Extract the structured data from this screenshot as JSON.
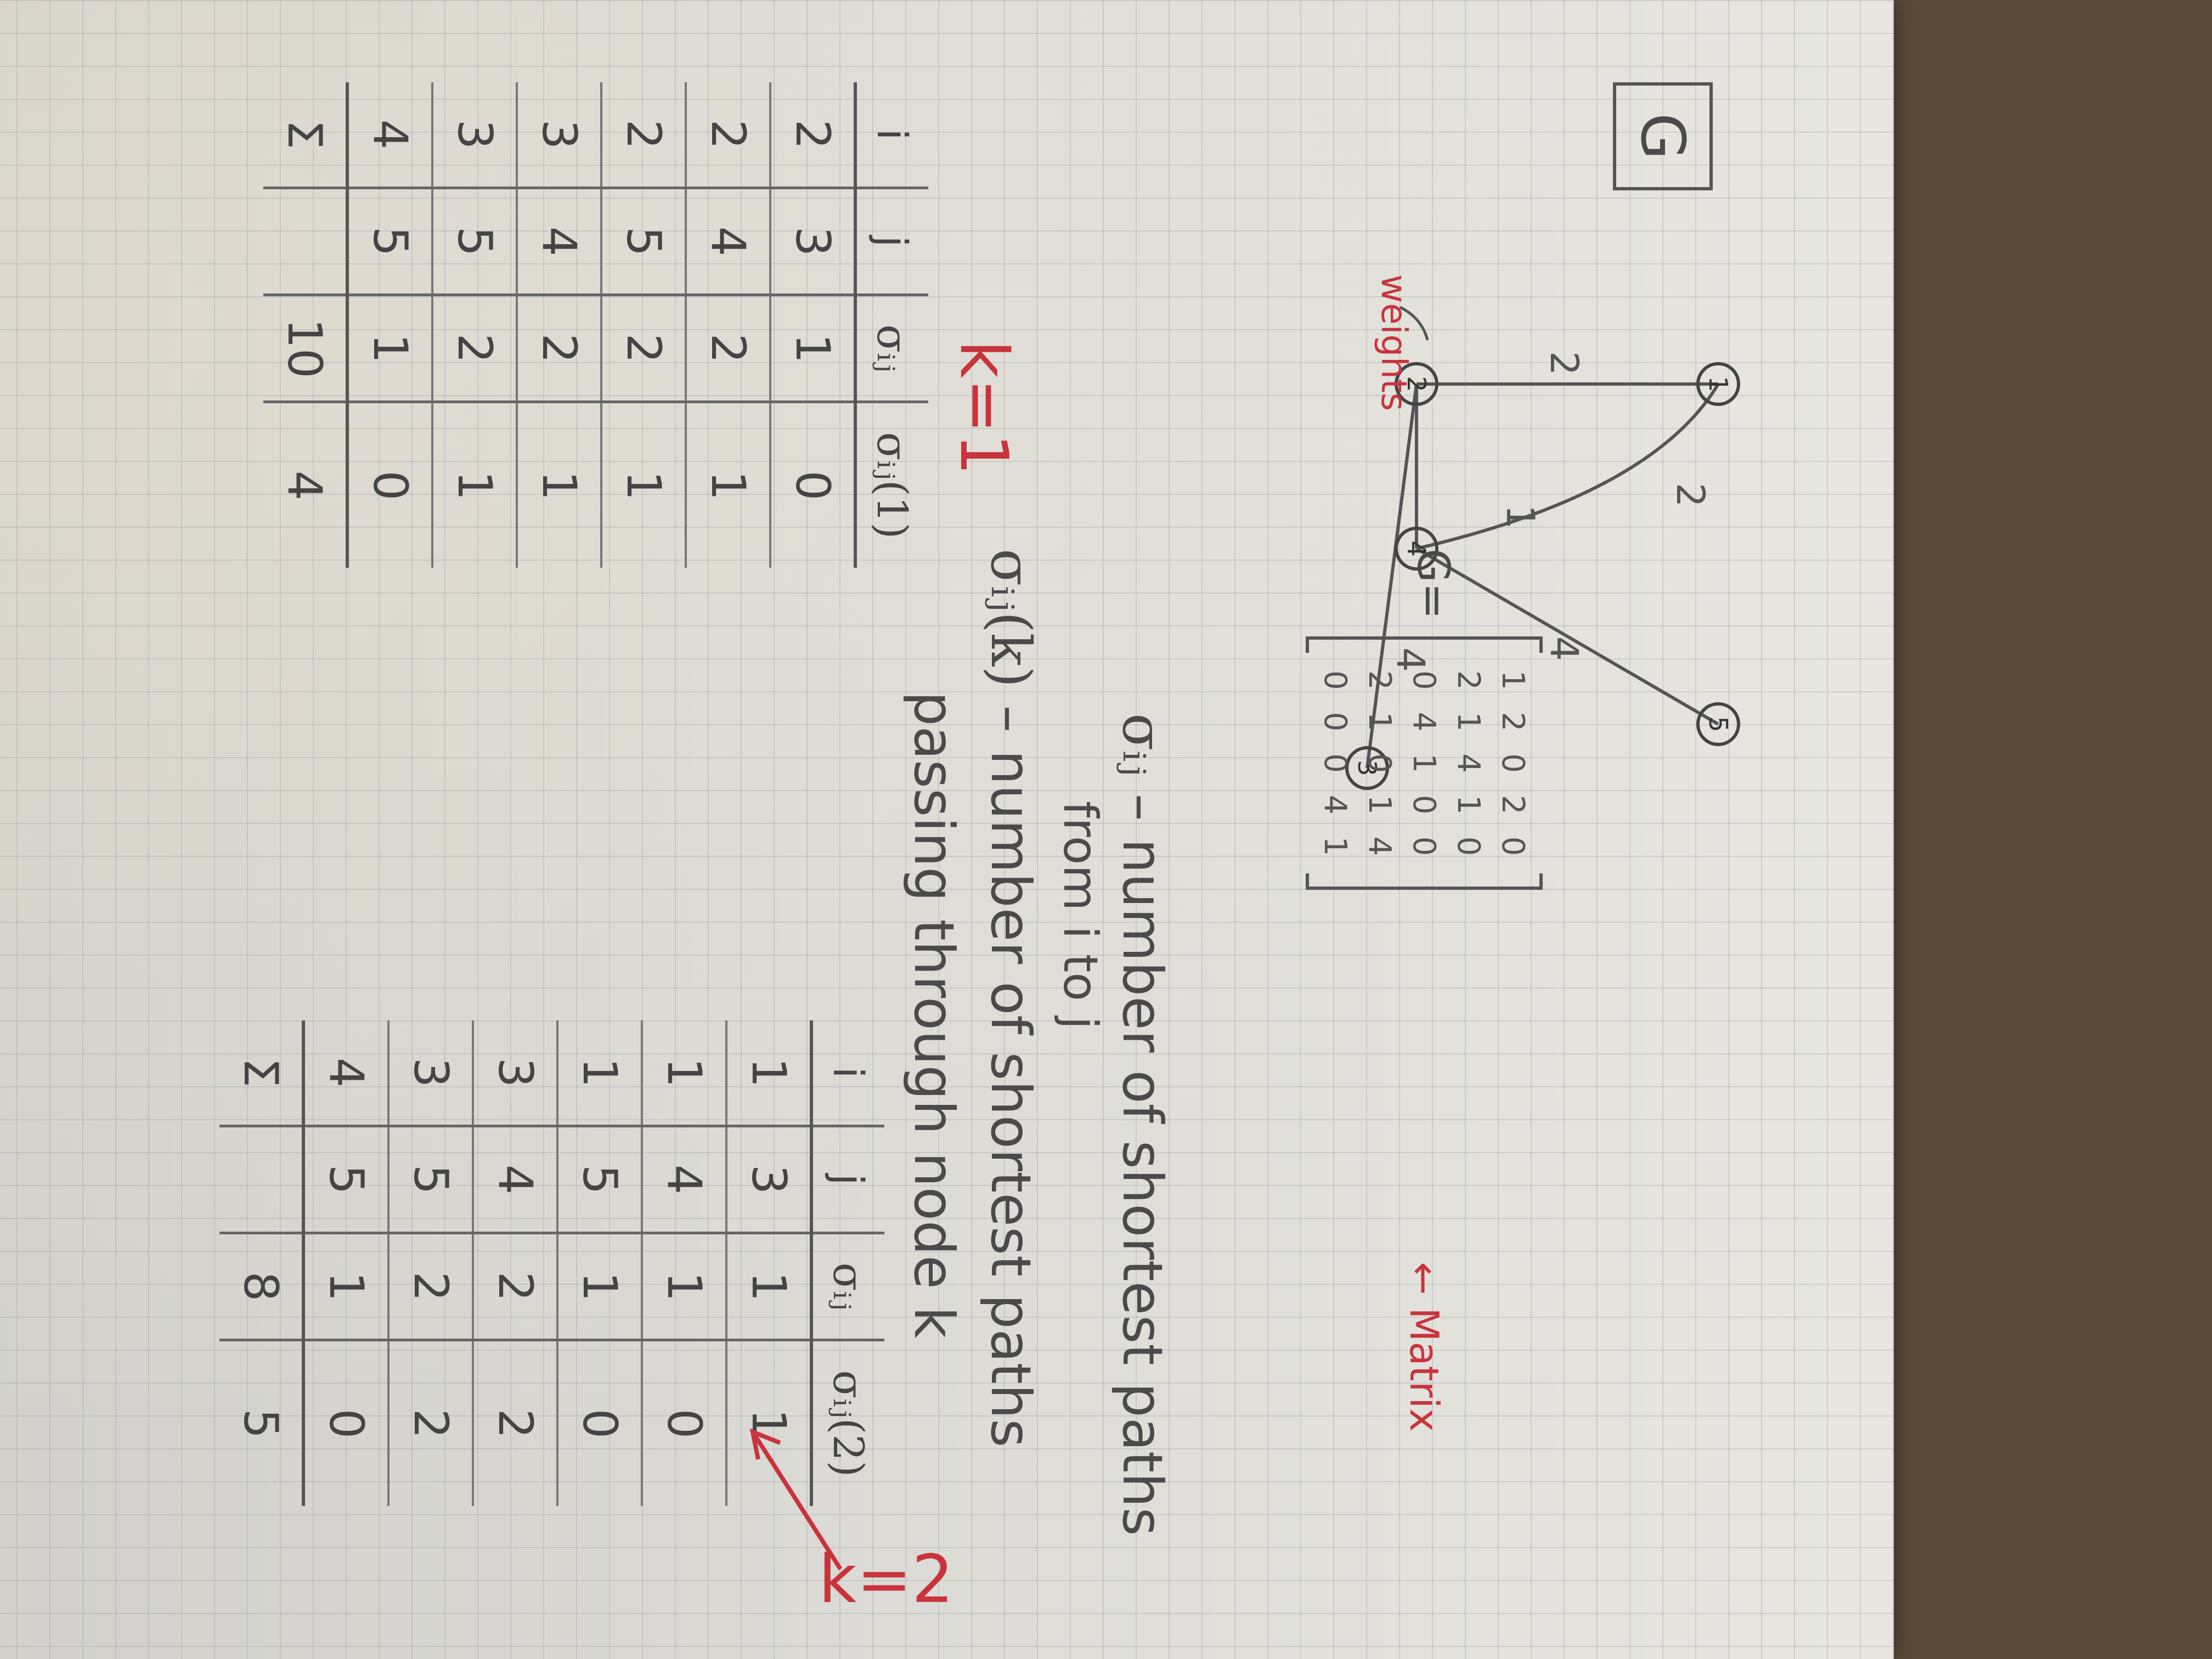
{
  "graph": {
    "box_label": "G",
    "annotation": "weights",
    "nodes": [
      "1",
      "2",
      "3",
      "4",
      "5"
    ],
    "edge_weights": {
      "e12": "2",
      "e14": "2",
      "e24": "1",
      "e23": "4",
      "e45": "4"
    }
  },
  "matrix": {
    "prefix": "G=",
    "arrow_label": "← Matrix",
    "rows": [
      [
        "1",
        "2",
        "0",
        "2",
        "0"
      ],
      [
        "2",
        "1",
        "4",
        "1",
        "0"
      ],
      [
        "0",
        "4",
        "1",
        "0",
        "0"
      ],
      [
        "2",
        "1",
        "0",
        "1",
        "4"
      ],
      [
        "0",
        "0",
        "0",
        "4",
        "1"
      ]
    ]
  },
  "definitions": {
    "sigma_ij_symbol": "σᵢⱼ",
    "sigma_ij_text": "– number of shortest paths",
    "sigma_ij_text2": "from i to j",
    "sigma_ijk_symbol": "σᵢⱼ(k)",
    "sigma_ijk_text": "– number of shortest paths",
    "sigma_ijk_text2": "passing through node k"
  },
  "table_k1": {
    "label": "k=1",
    "headers": [
      "i",
      "j",
      "σᵢⱼ",
      "σᵢⱼ(1)"
    ],
    "rows": [
      [
        "2",
        "3",
        "1",
        "0"
      ],
      [
        "2",
        "4",
        "2",
        "1"
      ],
      [
        "2",
        "5",
        "2",
        "1"
      ],
      [
        "3",
        "4",
        "2",
        "1"
      ],
      [
        "3",
        "5",
        "2",
        "1"
      ],
      [
        "4",
        "5",
        "1",
        "0"
      ]
    ],
    "sum_label": "Σ",
    "sum_sigma": "10",
    "sum_sigma_k": "4"
  },
  "table_k2": {
    "label": "k=2",
    "headers": [
      "i",
      "j",
      "σᵢⱼ",
      "σᵢⱼ(2)"
    ],
    "rows": [
      [
        "1",
        "3",
        "1",
        "1"
      ],
      [
        "1",
        "4",
        "1",
        "0"
      ],
      [
        "1",
        "5",
        "1",
        "0"
      ],
      [
        "3",
        "4",
        "2",
        "2"
      ],
      [
        "3",
        "5",
        "2",
        "2"
      ],
      [
        "4",
        "5",
        "1",
        "0"
      ]
    ],
    "sum_label": "Σ",
    "sum_sigma": "8",
    "sum_sigma_k": "5"
  }
}
